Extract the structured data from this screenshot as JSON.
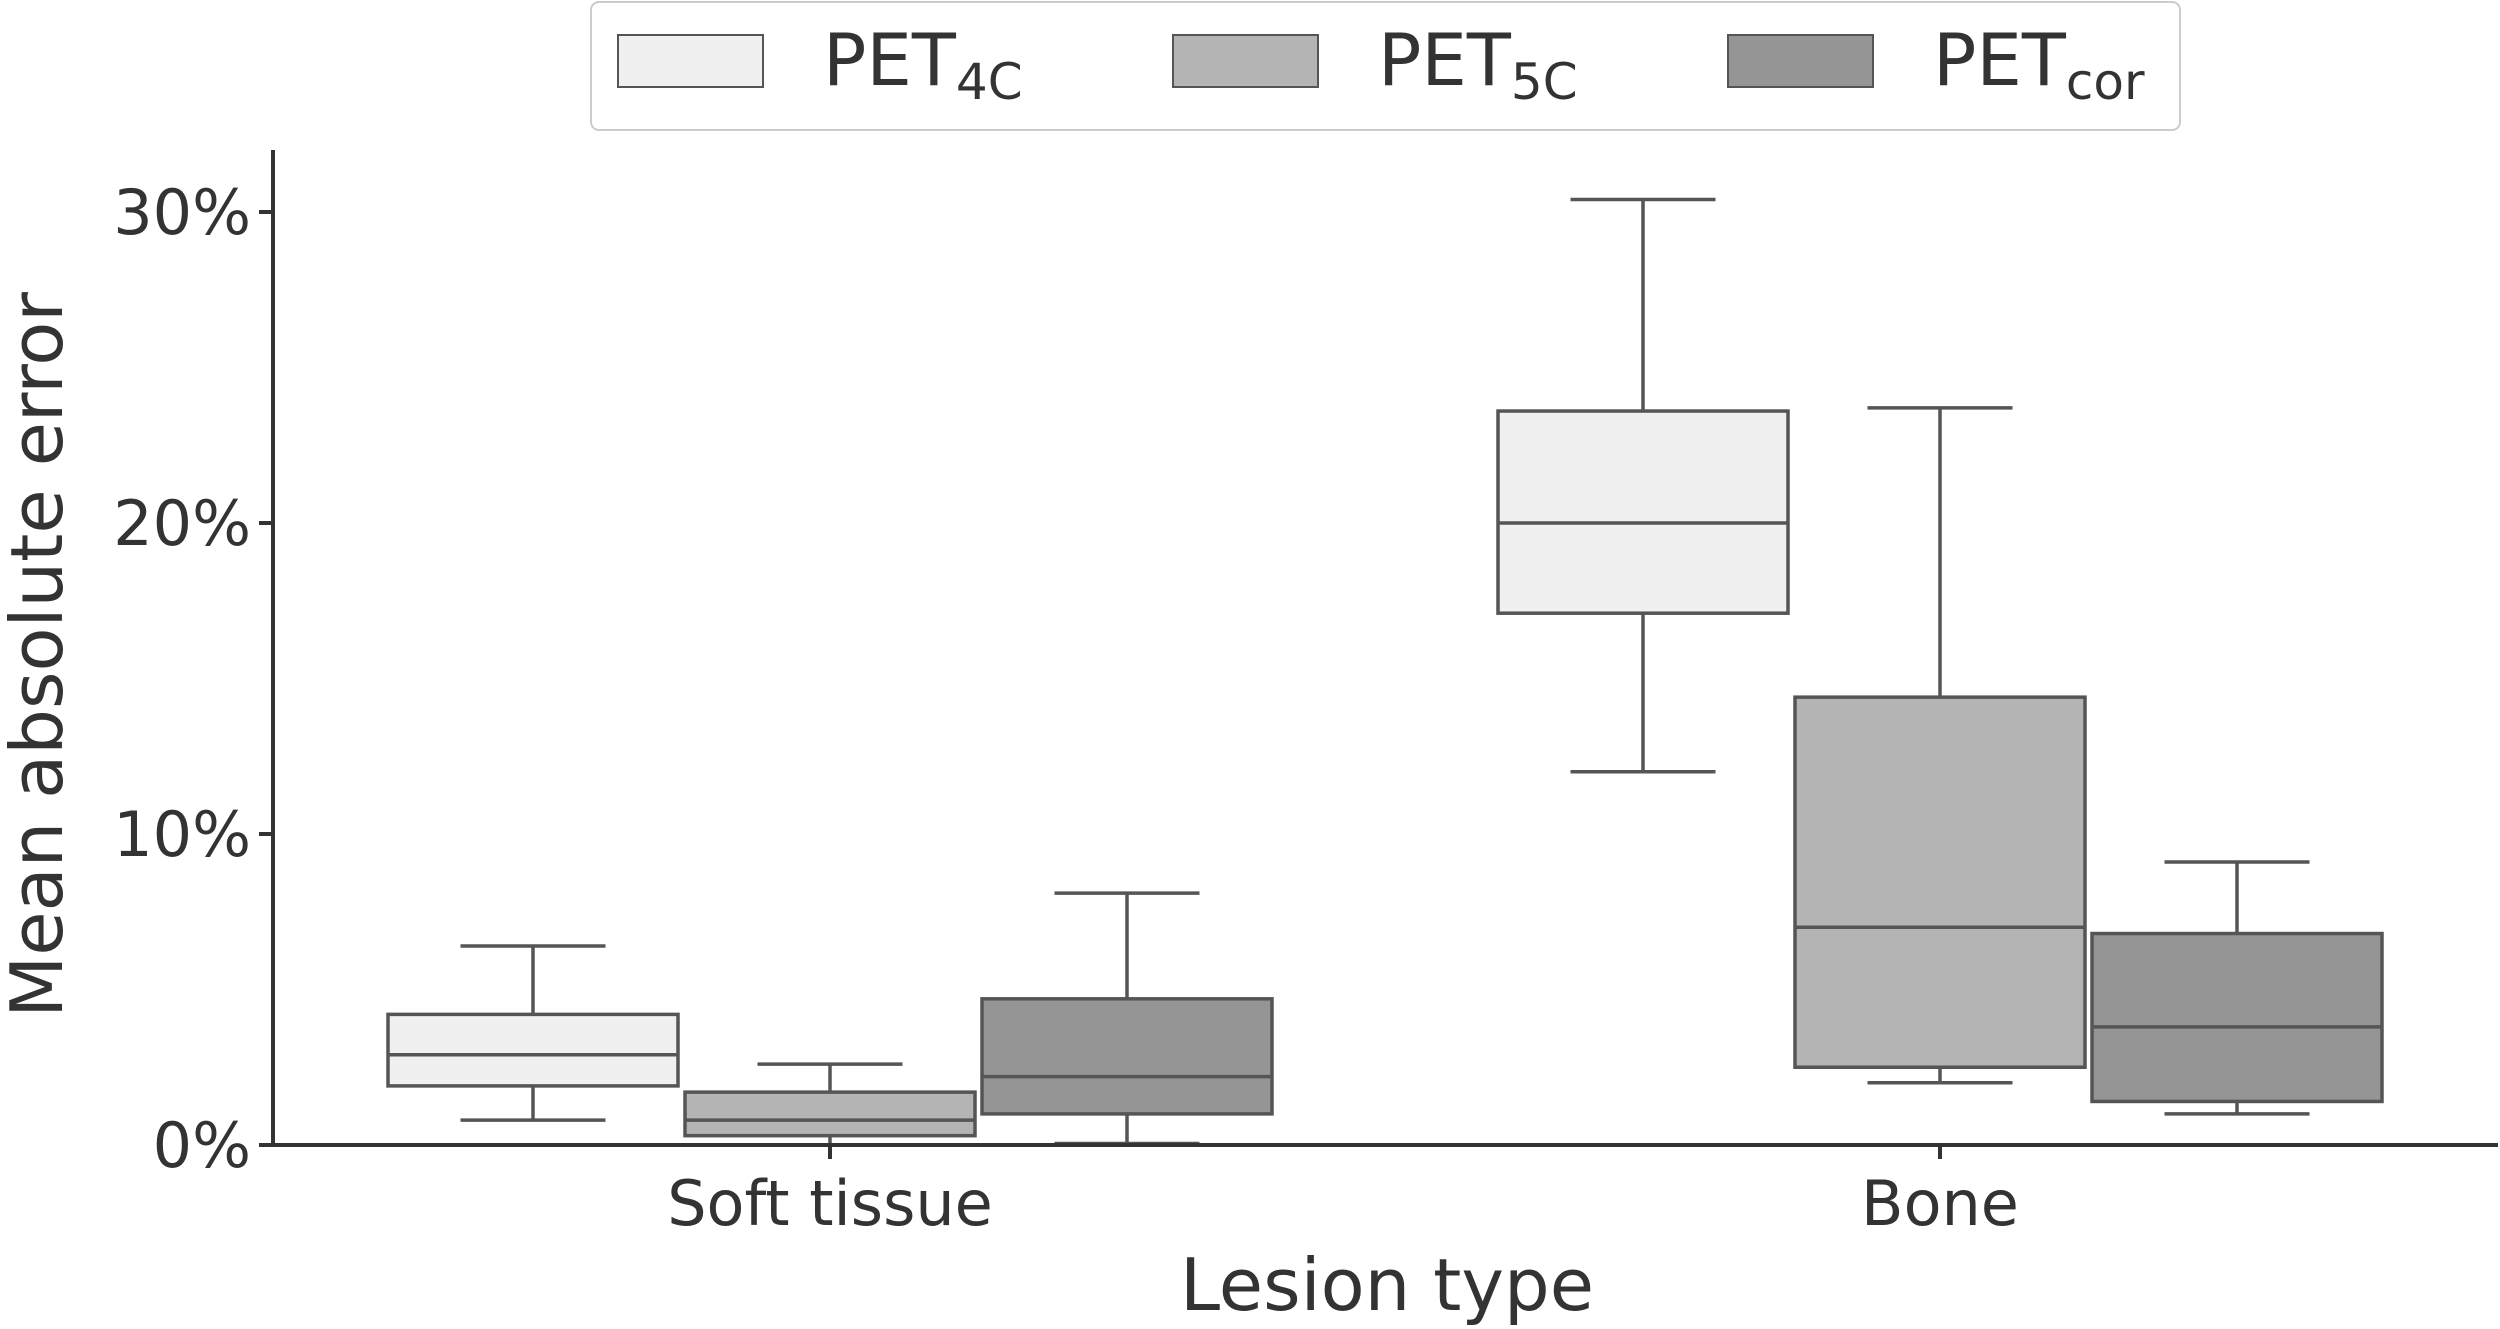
{
  "chart_data": {
    "type": "box",
    "title": "",
    "xlabel": "Lesion type",
    "ylabel": "Mean absolute error",
    "ylim": [
      0,
      32
    ],
    "yticks": [
      0,
      10,
      20,
      30
    ],
    "ytick_labels": [
      "0%",
      "10%",
      "20%",
      "30%"
    ],
    "categories": [
      "Soft tissue",
      "Bone"
    ],
    "grid": false,
    "legend_position": "top-center",
    "series": [
      {
        "name": "PET4C",
        "label_main": "PET",
        "label_sub": "4C",
        "color": "#f0f0f0",
        "boxes": [
          {
            "category": "Soft tissue",
            "whisker_low": 0.8,
            "q1": 1.9,
            "median": 2.9,
            "q3": 4.2,
            "whisker_high": 6.4
          },
          {
            "category": "Bone",
            "whisker_low": 12.0,
            "q1": 17.1,
            "median": 20.0,
            "q3": 23.6,
            "whisker_high": 30.4
          }
        ]
      },
      {
        "name": "PET5C",
        "label_main": "PET",
        "label_sub": "5C",
        "color": "#b4b4b4",
        "boxes": [
          {
            "category": "Soft tissue",
            "whisker_low": 0.0,
            "q1": 0.3,
            "median": 0.8,
            "q3": 1.7,
            "whisker_high": 2.6
          },
          {
            "category": "Bone",
            "whisker_low": 2.0,
            "q1": 2.5,
            "median": 7.0,
            "q3": 14.4,
            "whisker_high": 23.7
          }
        ]
      },
      {
        "name": "PETcor",
        "label_main": "PET",
        "label_sub": "cor",
        "color": "#959595",
        "boxes": [
          {
            "category": "Soft tissue",
            "whisker_low": 0.05,
            "q1": 1.0,
            "median": 2.2,
            "q3": 4.7,
            "whisker_high": 8.1
          },
          {
            "category": "Bone",
            "whisker_low": 1.0,
            "q1": 1.4,
            "median": 3.8,
            "q3": 6.8,
            "whisker_high": 9.1
          }
        ]
      }
    ]
  }
}
